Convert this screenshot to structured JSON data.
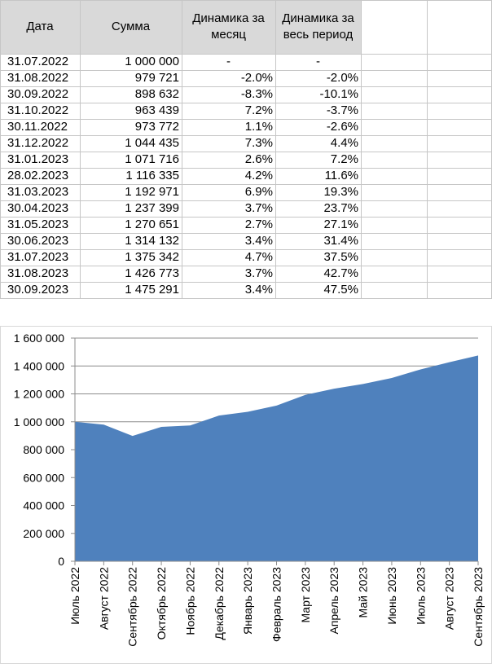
{
  "table": {
    "headers": [
      "Дата",
      "Сумма",
      "Динамика за месяц",
      "Динамика за весь период"
    ],
    "rows": [
      [
        "31.07.2022",
        "1 000 000",
        "-",
        "-"
      ],
      [
        "31.08.2022",
        "979 721",
        "-2.0%",
        "-2.0%"
      ],
      [
        "30.09.2022",
        "898 632",
        "-8.3%",
        "-10.1%"
      ],
      [
        "31.10.2022",
        "963 439",
        "7.2%",
        "-3.7%"
      ],
      [
        "30.11.2022",
        "973 772",
        "1.1%",
        "-2.6%"
      ],
      [
        "31.12.2022",
        "1 044 435",
        "7.3%",
        "4.4%"
      ],
      [
        "31.01.2023",
        "1 071 716",
        "2.6%",
        "7.2%"
      ],
      [
        "28.02.2023",
        "1 116 335",
        "4.2%",
        "11.6%"
      ],
      [
        "31.03.2023",
        "1 192 971",
        "6.9%",
        "19.3%"
      ],
      [
        "30.04.2023",
        "1 237 399",
        "3.7%",
        "23.7%"
      ],
      [
        "31.05.2023",
        "1 270 651",
        "2.7%",
        "27.1%"
      ],
      [
        "30.06.2023",
        "1 314 132",
        "3.4%",
        "31.4%"
      ],
      [
        "31.07.2023",
        "1 375 342",
        "4.7%",
        "37.5%"
      ],
      [
        "31.08.2023",
        "1 426 773",
        "3.7%",
        "42.7%"
      ],
      [
        "30.09.2023",
        "1 475 291",
        "3.4%",
        "47.5%"
      ]
    ]
  },
  "chart_data": {
    "type": "area",
    "title": "",
    "xlabel": "",
    "ylabel": "",
    "categories": [
      "Июль 2022",
      "Август 2022",
      "Сентябрь 2022",
      "Октябрь 2022",
      "Ноябрь 2022",
      "Декабрь 2022",
      "Январь 2023",
      "Февраль 2023",
      "Март 2023",
      "Апрель 2023",
      "Май 2023",
      "Июнь 2023",
      "Июль 2023",
      "Август 2023",
      "Сентябрь 2023"
    ],
    "series": [
      {
        "values": [
          1000000,
          979721,
          898632,
          963439,
          973772,
          1044435,
          1071716,
          1116335,
          1192971,
          1237399,
          1270651,
          1314132,
          1375342,
          1426773,
          1475291
        ]
      }
    ],
    "ylim": [
      0,
      1600000
    ],
    "yticks": [
      0,
      200000,
      400000,
      600000,
      800000,
      1000000,
      1200000,
      1400000,
      1600000
    ],
    "ytick_labels": [
      "0",
      "200 000",
      "400 000",
      "600 000",
      "800 000",
      "1 000 000",
      "1 200 000",
      "1 400 000",
      "1 600 000"
    ],
    "grid": true,
    "legend": "none",
    "color": "#4f81bd"
  }
}
